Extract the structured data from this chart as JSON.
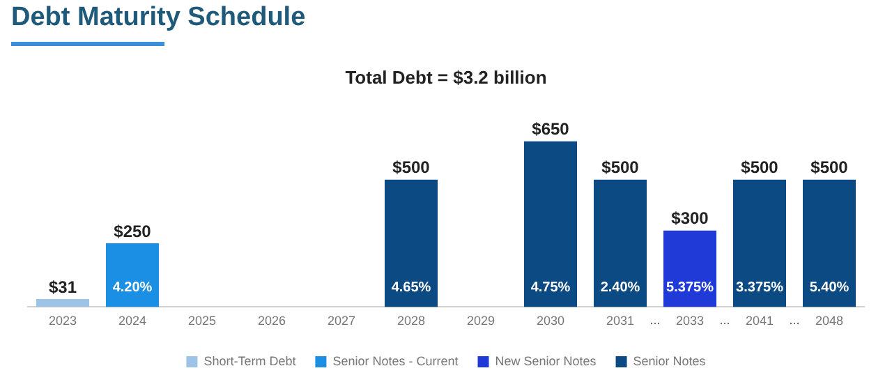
{
  "chart_data": {
    "type": "bar",
    "title": "Debt Maturity Schedule",
    "subtitle": "Total Debt = $3.2 billion",
    "categories": [
      "2023",
      "2024",
      "2025",
      "2026",
      "2027",
      "2028",
      "2029",
      "2030",
      "2031",
      "2033",
      "2041",
      "2048"
    ],
    "legend": "bottom",
    "series": [
      {
        "name": "Short-Term Debt",
        "color": "#9dc3e6",
        "values": [
          31,
          null,
          null,
          null,
          null,
          null,
          null,
          null,
          null,
          null,
          null,
          null
        ],
        "value_labels": [
          "$31",
          null,
          null,
          null,
          null,
          null,
          null,
          null,
          null,
          null,
          null,
          null
        ]
      },
      {
        "name": "Senior Notes - Current",
        "color": "#1a8fe3",
        "values": [
          null,
          250,
          null,
          null,
          null,
          null,
          null,
          null,
          null,
          null,
          null,
          null
        ],
        "value_labels": [
          null,
          "$250",
          null,
          null,
          null,
          null,
          null,
          null,
          null,
          null,
          null,
          null
        ]
      },
      {
        "name": "New Senior Notes",
        "color": "#1f3ad6",
        "values": [
          null,
          null,
          null,
          null,
          null,
          null,
          null,
          null,
          null,
          300,
          null,
          null
        ],
        "value_labels": [
          null,
          null,
          null,
          null,
          null,
          null,
          null,
          null,
          null,
          "$300",
          null,
          null
        ]
      },
      {
        "name": "Senior Notes",
        "color": "#0c4a83",
        "values": [
          null,
          null,
          null,
          null,
          null,
          500,
          null,
          650,
          500,
          null,
          500,
          500
        ],
        "value_labels": [
          null,
          null,
          null,
          null,
          null,
          "$500",
          null,
          "$650",
          "$500",
          null,
          "$500",
          "$500"
        ]
      }
    ],
    "annotations": [
      "4.20%",
      "4.65%",
      "4.75%",
      "2.40%",
      "5.375%",
      "3.375%",
      "5.40%",
      "...",
      "...",
      "..."
    ]
  }
}
